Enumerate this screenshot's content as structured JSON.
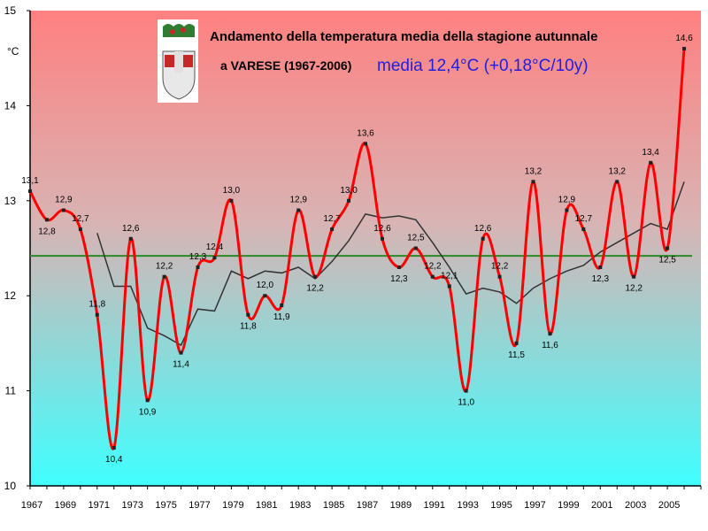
{
  "chart_data": {
    "type": "line",
    "title_line1": "Andamento della temperatura media della stagione autunnale",
    "title_line2": "a VARESE (1967-2006)",
    "title_line3": "media 12,4°C (+0,18°C/10y)",
    "ylabel": "°C",
    "ylim": [
      10,
      15
    ],
    "yticks": [
      "10",
      "11",
      "12",
      "13",
      "14",
      "15"
    ],
    "xlim": [
      1967,
      2007
    ],
    "xtick_labels": [
      "1967",
      "1969",
      "1971",
      "1973",
      "1975",
      "1977",
      "1979",
      "1981",
      "1983",
      "1985",
      "1987",
      "1989",
      "1991",
      "1993",
      "1995",
      "1997",
      "1999",
      "2001",
      "2003",
      "2005"
    ],
    "x": [
      1967,
      1968,
      1969,
      1970,
      1971,
      1972,
      1973,
      1974,
      1975,
      1976,
      1977,
      1978,
      1979,
      1980,
      1981,
      1982,
      1983,
      1984,
      1985,
      1986,
      1987,
      1988,
      1989,
      1990,
      1991,
      1992,
      1993,
      1994,
      1995,
      1996,
      1997,
      1998,
      1999,
      2000,
      2001,
      2002,
      2003,
      2004,
      2005,
      2006
    ],
    "series": [
      {
        "role": "annual",
        "color": "#ff0000",
        "values": [
          13.1,
          12.8,
          12.9,
          12.7,
          11.8,
          10.4,
          12.6,
          10.9,
          12.2,
          11.4,
          12.3,
          12.4,
          13.0,
          11.8,
          12.0,
          11.9,
          12.9,
          12.2,
          12.7,
          13.0,
          13.6,
          12.6,
          12.3,
          12.5,
          12.2,
          12.1,
          11.0,
          12.6,
          12.2,
          11.5,
          13.2,
          11.6,
          12.9,
          12.7,
          12.3,
          13.2,
          12.2,
          13.4,
          12.5,
          14.6
        ],
        "labels": [
          "13,1",
          "12,8",
          "12,9",
          "12,7",
          "11,8",
          "10,4",
          "12,6",
          "10,9",
          "12,2",
          "11,4",
          "12,3",
          "12,4",
          "13,0",
          "11,8",
          "12,0",
          "11,9",
          "12,9",
          "12,2",
          "12,7",
          "13,0",
          "13,6",
          "12,6",
          "12,3",
          "12,5",
          "12,2",
          "12,1",
          "11,0",
          "12,6",
          "12,2",
          "11,5",
          "13,2",
          "11,6",
          "12,9",
          "12,7",
          "12,3",
          "13,2",
          "12,2",
          "13,4",
          "12,5",
          "14,6"
        ]
      },
      {
        "role": "moving-average",
        "color": "#333333",
        "x": [
          1971,
          1972,
          1973,
          1974,
          1975,
          1976,
          1977,
          1978,
          1979,
          1980,
          1981,
          1982,
          1983,
          1984,
          1985,
          1986,
          1987,
          1988,
          1989,
          1990,
          1991,
          1992,
          1993,
          1994,
          1995,
          1996,
          1997,
          1998,
          1999,
          2000,
          2001,
          2002,
          2003,
          2004,
          2005,
          2006
        ],
        "values": [
          12.66,
          12.1,
          12.1,
          11.66,
          11.58,
          11.48,
          11.86,
          11.84,
          12.26,
          12.18,
          12.26,
          12.24,
          12.3,
          12.18,
          12.36,
          12.58,
          12.86,
          12.82,
          12.84,
          12.8,
          12.56,
          12.3,
          12.02,
          12.08,
          12.04,
          11.92,
          12.08,
          12.18,
          12.26,
          12.32,
          12.46,
          12.56,
          12.66,
          12.76,
          12.7,
          13.2
        ]
      },
      {
        "role": "mean",
        "color": "#2a8a2a",
        "value": 12.42
      }
    ],
    "background_gradient": [
      "#ff8080",
      "#40ffff"
    ],
    "grid": false
  }
}
